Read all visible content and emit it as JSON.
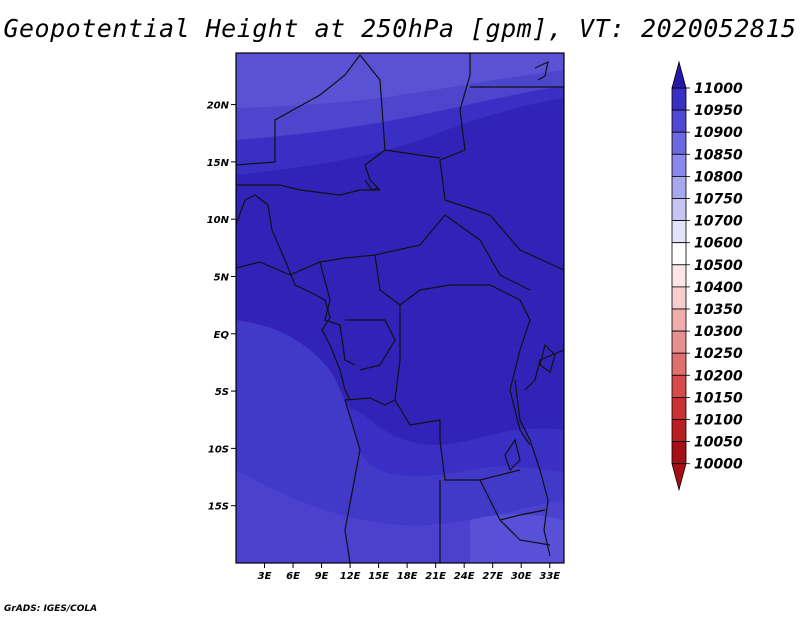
{
  "chart_data": {
    "type": "heatmap",
    "title": "Geopotential Height at 250hPa [gpm], VT: 2020052815",
    "xlabel": "",
    "ylabel": "",
    "x_ticks": [
      "3E",
      "6E",
      "9E",
      "12E",
      "15E",
      "18E",
      "21E",
      "24E",
      "27E",
      "30E",
      "33E"
    ],
    "y_ticks": [
      "20N",
      "15N",
      "10N",
      "5N",
      "EQ",
      "5S",
      "10S",
      "15S"
    ],
    "lon_range": [
      0,
      34.5
    ],
    "lat_range": [
      -20,
      24.5
    ],
    "field_range_gpm": [
      10850,
      10950
    ],
    "colorbar": {
      "unit": "gpm",
      "levels": [
        10000,
        10050,
        10100,
        10150,
        10200,
        10250,
        10300,
        10350,
        10400,
        10500,
        10600,
        10700,
        10750,
        10800,
        10850,
        10900,
        10950,
        11000
      ],
      "colors": [
        "#a50f15",
        "#b91f1f",
        "#cb3131",
        "#d84a4a",
        "#e06f6f",
        "#e88f8f",
        "#f0adad",
        "#f7cdcd",
        "#fde6e6",
        "#ffffff",
        "#e3e3fb",
        "#c6c6f5",
        "#a8a8f0",
        "#8a88ea",
        "#6d68e0",
        "#5047d4",
        "#3a2fc4",
        "#2719a8"
      ]
    }
  },
  "footer": {
    "credit": "GrADS: IGES/COLA"
  }
}
